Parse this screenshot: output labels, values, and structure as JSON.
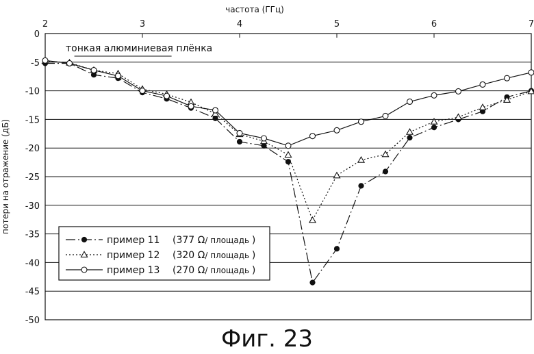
{
  "chart_data": {
    "type": "line",
    "title": "",
    "xlabel": "частота (ГГц)",
    "ylabel": "потери на отражение (дБ)",
    "xlim": [
      2,
      7
    ],
    "ylim": [
      -50,
      0
    ],
    "xticks": [
      "2",
      "3",
      "4",
      "5",
      "6",
      "7"
    ],
    "yticks": [
      "0",
      "-5",
      "-10",
      "-15",
      "-20",
      "-25",
      "-30",
      "-35",
      "-40",
      "-45",
      "-50"
    ],
    "grid": "horizontal",
    "legend_position": "bottom-left",
    "annotation": "тонкая алюминиевая плёнка",
    "annotation_xrange": [
      2.3,
      3.3
    ],
    "series": [
      {
        "name": "пример 11",
        "detail": "(377",
        "unit": "Ω",
        "suffix": "/ площадь",
        "close": ")",
        "marker": "filled-circle",
        "dash": "longdash-dot",
        "x": [
          2,
          2.25,
          2.5,
          2.75,
          3,
          3.25,
          3.5,
          3.75,
          4,
          4.25,
          4.5,
          4.75,
          5,
          5.25,
          5.5,
          5.75,
          6,
          6.25,
          6.5,
          6.75,
          7
        ],
        "values": [
          -5.2,
          -5.2,
          -7.2,
          -7.8,
          -10.3,
          -11.4,
          -13,
          -14.8,
          -18.9,
          -19.6,
          -22.4,
          -43.5,
          -37.6,
          -26.6,
          -24.1,
          -18.2,
          -16.4,
          -15,
          -13.6,
          -11.1,
          -10
        ]
      },
      {
        "name": "пример 12",
        "detail": "(320",
        "unit": "Ω",
        "suffix": "/ площадь",
        "close": ")",
        "marker": "open-triangle",
        "dash": "dotted",
        "x": [
          2,
          2.25,
          2.5,
          2.75,
          3,
          3.25,
          3.5,
          3.75,
          4,
          4.25,
          4.5,
          4.75,
          5,
          5.25,
          5.5,
          5.75,
          6,
          6.25,
          6.5,
          6.75,
          7
        ],
        "values": [
          -4.8,
          -5.1,
          -6.4,
          -7,
          -9.7,
          -10.6,
          -12,
          -14,
          -17.6,
          -18.8,
          -21.2,
          -32.6,
          -24.8,
          -22.1,
          -21.1,
          -17.2,
          -15.4,
          -14.6,
          -12.9,
          -11.6,
          -10.1
        ]
      },
      {
        "name": "пример 13",
        "detail": "(270",
        "unit": "Ω",
        "suffix": "/ площадь",
        "close": ")",
        "marker": "open-circle",
        "dash": "solid",
        "x": [
          2,
          2.25,
          2.5,
          2.75,
          3,
          3.25,
          3.5,
          3.75,
          4,
          4.25,
          4.5,
          4.75,
          5,
          5.25,
          5.5,
          5.75,
          6,
          6.25,
          6.5,
          6.75,
          7
        ],
        "values": [
          -4.7,
          -5.2,
          -6.4,
          -7.4,
          -10,
          -10.9,
          -12.7,
          -13.4,
          -17.4,
          -18.3,
          -19.6,
          -17.9,
          -16.9,
          -15.4,
          -14.4,
          -11.9,
          -10.8,
          -10.1,
          -8.9,
          -7.8,
          -6.8
        ]
      }
    ]
  },
  "figure_caption": "Фиг. 23"
}
